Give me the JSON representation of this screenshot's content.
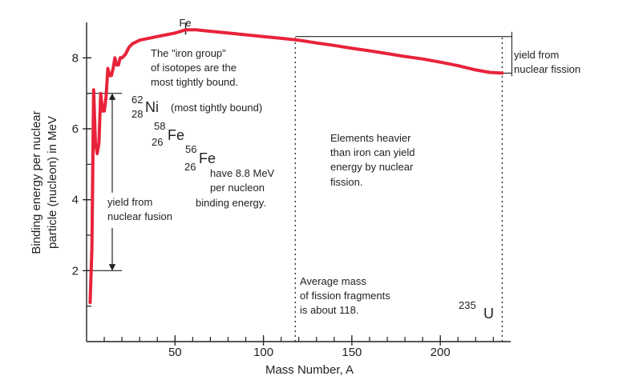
{
  "chart_data": {
    "type": "line",
    "title": "",
    "xlabel": "Mass Number, A",
    "ylabel_lines": [
      "Binding energy per nuclear",
      "particle (nucleon) in MeV"
    ],
    "xlim": [
      0,
      238
    ],
    "ylim": [
      0,
      9
    ],
    "x_ticks": [
      50,
      100,
      150,
      200
    ],
    "y_ticks": [
      2,
      4,
      6,
      8
    ],
    "x_tick_labels": [
      "50",
      "100",
      "150",
      "200"
    ],
    "y_tick_labels": [
      "2",
      "4",
      "6",
      "8"
    ],
    "series": [
      {
        "color": "#e8233a",
        "points": [
          [
            2,
            1.1
          ],
          [
            3,
            2.6
          ],
          [
            4,
            7.1
          ],
          [
            5,
            5.6
          ],
          [
            6,
            5.3
          ],
          [
            7,
            5.6
          ],
          [
            8,
            7.0
          ],
          [
            9,
            6.5
          ],
          [
            10,
            6.5
          ],
          [
            11,
            6.9
          ],
          [
            12,
            7.7
          ],
          [
            13,
            7.5
          ],
          [
            14,
            7.5
          ],
          [
            15,
            7.7
          ],
          [
            16,
            8.0
          ],
          [
            17,
            7.8
          ],
          [
            18,
            7.8
          ],
          [
            19,
            8.0
          ],
          [
            20,
            8.0
          ],
          [
            22,
            8.1
          ],
          [
            24,
            8.3
          ],
          [
            26,
            8.4
          ],
          [
            28,
            8.45
          ],
          [
            30,
            8.5
          ],
          [
            35,
            8.55
          ],
          [
            40,
            8.6
          ],
          [
            45,
            8.65
          ],
          [
            50,
            8.7
          ],
          [
            56,
            8.79
          ],
          [
            62,
            8.79
          ],
          [
            70,
            8.75
          ],
          [
            80,
            8.7
          ],
          [
            90,
            8.65
          ],
          [
            100,
            8.6
          ],
          [
            110,
            8.55
          ],
          [
            120,
            8.5
          ],
          [
            130,
            8.42
          ],
          [
            140,
            8.35
          ],
          [
            150,
            8.27
          ],
          [
            160,
            8.2
          ],
          [
            170,
            8.12
          ],
          [
            180,
            8.04
          ],
          [
            190,
            7.97
          ],
          [
            200,
            7.88
          ],
          [
            210,
            7.78
          ],
          [
            220,
            7.66
          ],
          [
            228,
            7.59
          ],
          [
            235,
            7.57
          ]
        ]
      }
    ],
    "reference_lines": {
      "fe_peak_x": 56,
      "fission_x": 118,
      "uranium_x": 235,
      "fission_level_y": 8.6,
      "fusion_top_y": 7.0,
      "fusion_bottom_y": 2.0
    },
    "annotations": {
      "fe_label": "Fe",
      "iron_group": [
        "The \"iron group\"",
        "of isotopes are the",
        "most tightly bound."
      ],
      "ni62": {
        "mass": "62",
        "atomic": "28",
        "symbol": "Ni",
        "note": "(most tightly bound)"
      },
      "fe58": {
        "mass": "58",
        "atomic": "26",
        "symbol": "Fe"
      },
      "fe56": {
        "mass": "56",
        "atomic": "26",
        "symbol": "Fe"
      },
      "have_energy": [
        "have 8.8 MeV",
        "per nucleon",
        "binding energy."
      ],
      "fusion_yield": [
        "yield from",
        "nuclear fusion"
      ],
      "heavy_elements": [
        "Elements heavier",
        "than iron can yield",
        "energy by nuclear",
        "fission."
      ],
      "fission_yield": [
        "yield from",
        "nuclear fission"
      ],
      "avg_mass": [
        "Average mass",
        "of fission fragments",
        "is about 118."
      ],
      "u235": {
        "mass": "235",
        "symbol": "U"
      }
    },
    "grid": false,
    "legend": "none"
  }
}
